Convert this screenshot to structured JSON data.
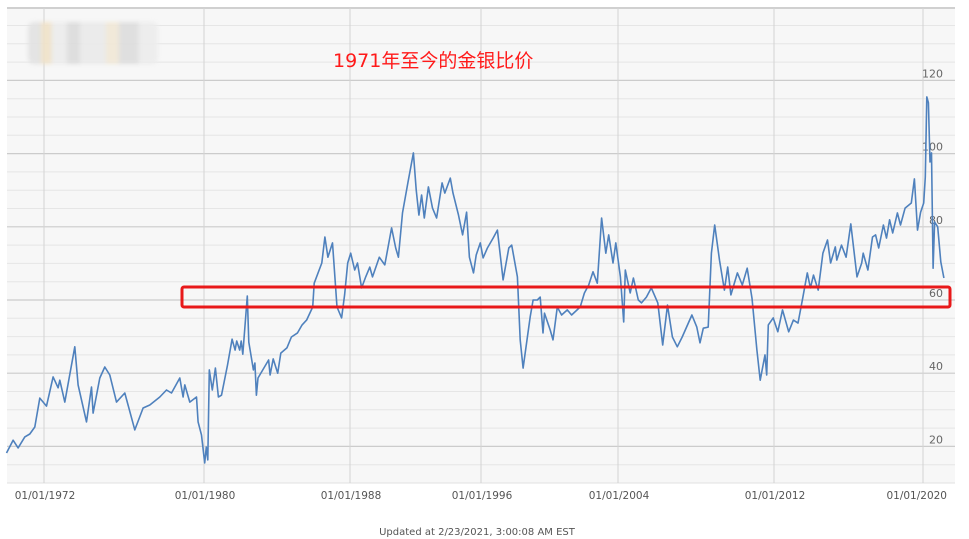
{
  "chart_data": {
    "type": "line",
    "title": "1971年至今的金银比价",
    "footer": "Updated at 2/23/2021, 3:00:08 AM EST",
    "line_color": "#4f81bd",
    "highlight_box_color": "#e8191a",
    "highlight_band": [
      58,
      63.5
    ],
    "ylim": [
      10,
      140
    ],
    "y_ticks": [
      "20",
      "40",
      "60",
      "80",
      "100",
      "120"
    ],
    "y_axis_position": "right",
    "x_ticks": [
      "01/01/1972",
      "01/01/1980",
      "01/01/1988",
      "01/01/1996",
      "01/01/2004",
      "01/01/2012",
      "01/01/2020"
    ],
    "grid": true,
    "points": [
      [
        "1970-02",
        18.2
      ],
      [
        "1970-06",
        21.7
      ],
      [
        "1970-09",
        19.6
      ],
      [
        "1971-01",
        22.6
      ],
      [
        "1971-04",
        23.4
      ],
      [
        "1971-07",
        25.3
      ],
      [
        "1971-10",
        33.2
      ],
      [
        "1972-02",
        31.0
      ],
      [
        "1972-06",
        39.0
      ],
      [
        "1972-09",
        36.0
      ],
      [
        "1972-10",
        38.1
      ],
      [
        "1973-01",
        32.1
      ],
      [
        "1973-07",
        47.2
      ],
      [
        "1973-09",
        36.8
      ],
      [
        "1974-02",
        26.7
      ],
      [
        "1974-05",
        36.2
      ],
      [
        "1974-06",
        29.1
      ],
      [
        "1974-10",
        38.7
      ],
      [
        "1975-01",
        41.7
      ],
      [
        "1975-04",
        39.5
      ],
      [
        "1975-08",
        32.1
      ],
      [
        "1976-01",
        34.6
      ],
      [
        "1976-07",
        24.5
      ],
      [
        "1976-12",
        30.5
      ],
      [
        "1977-04",
        31.3
      ],
      [
        "1977-10",
        33.5
      ],
      [
        "1978-02",
        35.4
      ],
      [
        "1978-05",
        34.6
      ],
      [
        "1978-10",
        38.7
      ],
      [
        "1978-12",
        33.5
      ],
      [
        "1979-01",
        36.8
      ],
      [
        "1979-04",
        32.1
      ],
      [
        "1979-08",
        33.5
      ],
      [
        "1979-09",
        26.7
      ],
      [
        "1979-11",
        23.1
      ],
      [
        "1980-01",
        15.5
      ],
      [
        "1980-02",
        19.8
      ],
      [
        "1980-03",
        16.3
      ],
      [
        "1980-04",
        40.9
      ],
      [
        "1980-06",
        35.4
      ],
      [
        "1980-08",
        41.4
      ],
      [
        "1980-10",
        33.5
      ],
      [
        "1980-12",
        34.0
      ],
      [
        "1981-04",
        42.2
      ],
      [
        "1981-07",
        49.3
      ],
      [
        "1981-09",
        46.3
      ],
      [
        "1981-10",
        48.8
      ],
      [
        "1981-12",
        46.3
      ],
      [
        "1982-01",
        48.8
      ],
      [
        "1982-02",
        45.2
      ],
      [
        "1982-05",
        61.1
      ],
      [
        "1982-06",
        48.5
      ],
      [
        "1982-09",
        40.9
      ],
      [
        "1982-10",
        42.8
      ],
      [
        "1982-11",
        34.0
      ],
      [
        "1982-12",
        38.7
      ],
      [
        "1983-07",
        43.6
      ],
      [
        "1983-08",
        39.5
      ],
      [
        "1983-10",
        43.9
      ],
      [
        "1984-01",
        40.0
      ],
      [
        "1984-03",
        45.5
      ],
      [
        "1984-07",
        46.9
      ],
      [
        "1984-10",
        49.9
      ],
      [
        "1985-02",
        51.0
      ],
      [
        "1985-05",
        53.2
      ],
      [
        "1985-08",
        54.5
      ],
      [
        "1985-12",
        58.1
      ],
      [
        "1986-01",
        64.6
      ],
      [
        "1986-06",
        70.1
      ],
      [
        "1986-08",
        77.2
      ],
      [
        "1986-10",
        71.7
      ],
      [
        "1987-01",
        75.6
      ],
      [
        "1987-04",
        58.1
      ],
      [
        "1987-07",
        55.1
      ],
      [
        "1987-09",
        61.4
      ],
      [
        "1987-11",
        70.1
      ],
      [
        "1988-01",
        72.8
      ],
      [
        "1988-04",
        68.2
      ],
      [
        "1988-06",
        70.1
      ],
      [
        "1988-09",
        63.3
      ],
      [
        "1988-12",
        66.3
      ],
      [
        "1989-03",
        69.0
      ],
      [
        "1989-05",
        66.3
      ],
      [
        "1989-10",
        71.7
      ],
      [
        "1990-02",
        69.6
      ],
      [
        "1990-07",
        79.7
      ],
      [
        "1990-10",
        74.2
      ],
      [
        "1990-12",
        71.7
      ],
      [
        "1991-03",
        83.8
      ],
      [
        "1991-07",
        92.2
      ],
      [
        "1991-11",
        100.2
      ],
      [
        "1992-01",
        90.1
      ],
      [
        "1992-03",
        83.2
      ],
      [
        "1992-05",
        88.7
      ],
      [
        "1992-07",
        82.4
      ],
      [
        "1992-10",
        90.9
      ],
      [
        "1993-01",
        85.1
      ],
      [
        "1993-04",
        82.4
      ],
      [
        "1993-08",
        92.0
      ],
      [
        "1993-10",
        89.2
      ],
      [
        "1994-02",
        93.3
      ],
      [
        "1994-04",
        89.2
      ],
      [
        "1994-08",
        83.2
      ],
      [
        "1994-11",
        77.8
      ],
      [
        "1995-02",
        84.0
      ],
      [
        "1995-04",
        71.7
      ],
      [
        "1995-07",
        67.4
      ],
      [
        "1995-09",
        72.3
      ],
      [
        "1995-12",
        75.6
      ],
      [
        "1996-02",
        71.5
      ],
      [
        "1996-05",
        74.2
      ],
      [
        "1996-09",
        76.9
      ],
      [
        "1996-12",
        79.1
      ],
      [
        "1997-04",
        65.5
      ],
      [
        "1997-08",
        74.2
      ],
      [
        "1997-10",
        75.0
      ],
      [
        "1998-02",
        66.3
      ],
      [
        "1998-04",
        49.1
      ],
      [
        "1998-06",
        41.4
      ],
      [
        "1998-09",
        49.9
      ],
      [
        "1998-11",
        55.4
      ],
      [
        "1999-01",
        60.0
      ],
      [
        "1999-04",
        60.0
      ],
      [
        "1999-06",
        60.8
      ],
      [
        "1999-08",
        51.0
      ],
      [
        "1999-09",
        56.4
      ],
      [
        "2000-01",
        51.8
      ],
      [
        "2000-03",
        49.1
      ],
      [
        "2000-06",
        58.1
      ],
      [
        "2000-09",
        55.9
      ],
      [
        "2001-01",
        57.3
      ],
      [
        "2001-04",
        55.9
      ],
      [
        "2001-10",
        58.1
      ],
      [
        "2002-01",
        61.9
      ],
      [
        "2002-04",
        64.1
      ],
      [
        "2002-07",
        67.7
      ],
      [
        "2002-10",
        64.6
      ],
      [
        "2003-01",
        82.4
      ],
      [
        "2003-04",
        72.8
      ],
      [
        "2003-06",
        77.8
      ],
      [
        "2003-09",
        70.1
      ],
      [
        "2003-11",
        75.6
      ],
      [
        "2004-02",
        66.3
      ],
      [
        "2004-04",
        54.0
      ],
      [
        "2004-05",
        68.2
      ],
      [
        "2004-08",
        61.9
      ],
      [
        "2004-10",
        66.0
      ],
      [
        "2005-01",
        60.0
      ],
      [
        "2005-03",
        59.2
      ],
      [
        "2005-06",
        60.8
      ],
      [
        "2005-09",
        63.3
      ],
      [
        "2006-01",
        59.2
      ],
      [
        "2006-04",
        47.7
      ],
      [
        "2006-07",
        58.6
      ],
      [
        "2006-10",
        49.9
      ],
      [
        "2007-01",
        47.2
      ],
      [
        "2007-04",
        49.9
      ],
      [
        "2007-10",
        55.9
      ],
      [
        "2008-01",
        52.6
      ],
      [
        "2008-03",
        48.3
      ],
      [
        "2008-05",
        52.3
      ],
      [
        "2008-08",
        52.6
      ],
      [
        "2008-10",
        72.8
      ],
      [
        "2008-12",
        80.5
      ],
      [
        "2009-03",
        70.9
      ],
      [
        "2009-06",
        62.7
      ],
      [
        "2009-08",
        69.0
      ],
      [
        "2009-10",
        61.4
      ],
      [
        "2010-02",
        67.4
      ],
      [
        "2010-05",
        64.1
      ],
      [
        "2010-08",
        68.7
      ],
      [
        "2010-11",
        60.5
      ],
      [
        "2011-02",
        46.3
      ],
      [
        "2011-04",
        38.1
      ],
      [
        "2011-07",
        45.0
      ],
      [
        "2011-08",
        39.5
      ],
      [
        "2011-09",
        53.2
      ],
      [
        "2011-12",
        55.1
      ],
      [
        "2012-03",
        51.3
      ],
      [
        "2012-06",
        57.3
      ],
      [
        "2012-10",
        51.3
      ],
      [
        "2013-01",
        54.5
      ],
      [
        "2013-04",
        53.7
      ],
      [
        "2013-07",
        60.5
      ],
      [
        "2013-10",
        67.4
      ],
      [
        "2013-12",
        63.3
      ],
      [
        "2014-02",
        66.8
      ],
      [
        "2014-05",
        62.7
      ],
      [
        "2014-08",
        72.8
      ],
      [
        "2014-11",
        76.4
      ],
      [
        "2015-01",
        70.1
      ],
      [
        "2015-04",
        74.5
      ],
      [
        "2015-05",
        70.9
      ],
      [
        "2015-08",
        75.0
      ],
      [
        "2015-11",
        71.7
      ],
      [
        "2016-02",
        80.8
      ],
      [
        "2016-06",
        66.3
      ],
      [
        "2016-09",
        70.1
      ],
      [
        "2016-10",
        72.8
      ],
      [
        "2017-01",
        68.2
      ],
      [
        "2017-04",
        77.2
      ],
      [
        "2017-06",
        77.8
      ],
      [
        "2017-08",
        74.2
      ],
      [
        "2017-11",
        80.5
      ],
      [
        "2018-01",
        76.9
      ],
      [
        "2018-03",
        81.9
      ],
      [
        "2018-05",
        78.3
      ],
      [
        "2018-08",
        83.8
      ],
      [
        "2018-10",
        80.5
      ],
      [
        "2019-01",
        85.1
      ],
      [
        "2019-05",
        86.5
      ],
      [
        "2019-07",
        93.1
      ],
      [
        "2019-09",
        79.1
      ],
      [
        "2019-11",
        84.0
      ],
      [
        "2020-01",
        86.5
      ],
      [
        "2020-02",
        93.6
      ],
      [
        "2020-03",
        115.5
      ],
      [
        "2020-04",
        113.9
      ],
      [
        "2020-05",
        97.7
      ],
      [
        "2020-06",
        100.2
      ],
      [
        "2020-07",
        68.7
      ],
      [
        "2020-08",
        81.3
      ],
      [
        "2020-10",
        80.0
      ],
      [
        "2020-12",
        70.4
      ],
      [
        "2021-02",
        66.0
      ]
    ]
  }
}
